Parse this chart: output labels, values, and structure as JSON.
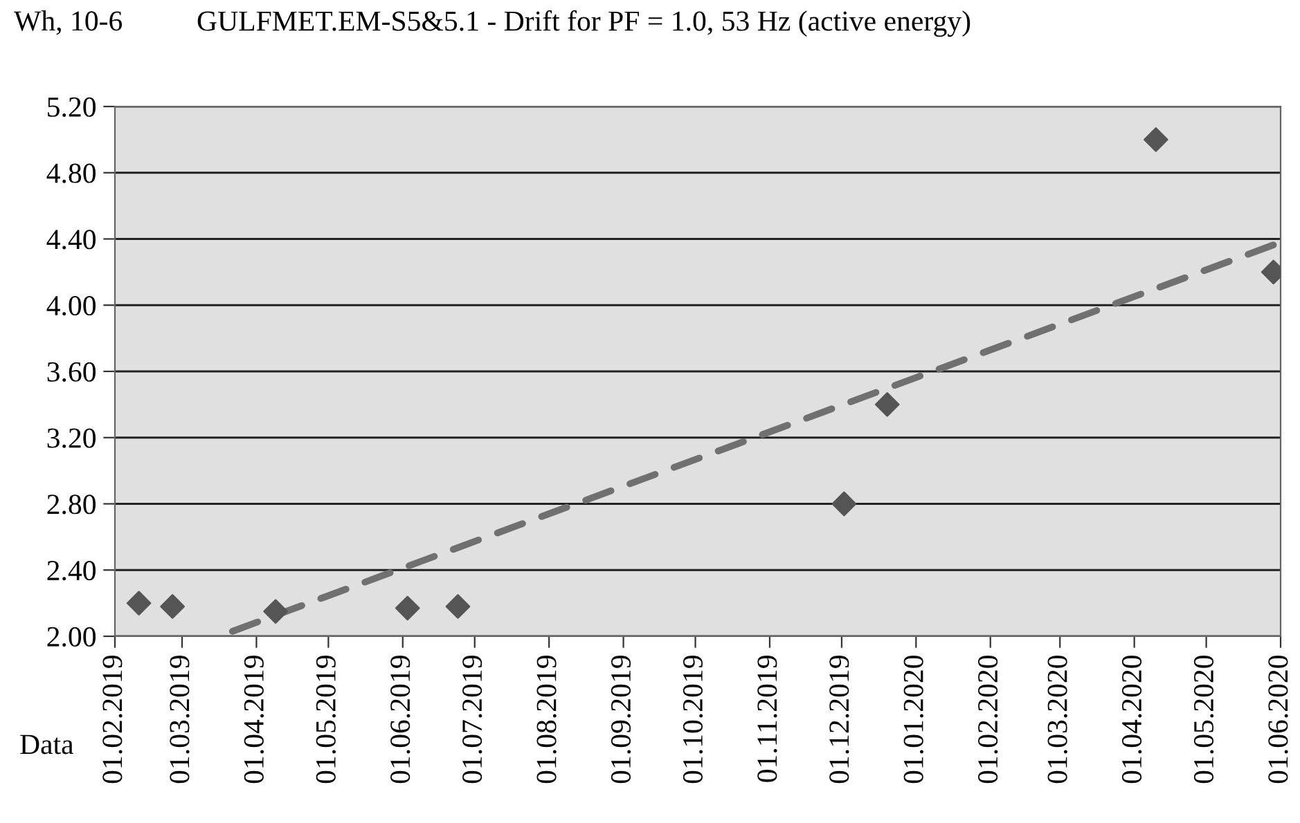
{
  "chart_data": {
    "type": "scatter",
    "title": "GULFMET.EM-S5&5.1 - Drift for PF = 1.0, 53 Hz (active energy)",
    "ylabel": "Wh, 10-6",
    "xlabel": "Data",
    "series": [
      {
        "marker": "diamond",
        "color": "#555555",
        "x": [
          "2019-02-11",
          "2019-02-25",
          "2019-04-09",
          "2019-06-03",
          "2019-06-24",
          "2019-12-02",
          "2019-12-20",
          "2020-04-10",
          "2020-05-29"
        ],
        "values": [
          2.2,
          2.18,
          2.15,
          2.17,
          2.18,
          2.8,
          3.4,
          5.0,
          4.2
        ]
      },
      {
        "type": "line",
        "line_style": "dashed",
        "color": "#707070",
        "x": [
          "2019-03-22",
          "2020-06-01"
        ],
        "values": [
          2.03,
          4.38
        ]
      }
    ],
    "xlim": [
      "2019-02-01",
      "2020-06-01"
    ],
    "xticks": [
      {
        "value": "2019-02-01",
        "label": "01.02.2019"
      },
      {
        "value": "2019-03-01",
        "label": "01.03.2019"
      },
      {
        "value": "2019-04-01",
        "label": "01.04.2019"
      },
      {
        "value": "2019-05-01",
        "label": "01.05.2019"
      },
      {
        "value": "2019-06-01",
        "label": "01.06.2019"
      },
      {
        "value": "2019-07-01",
        "label": "01.07.2019"
      },
      {
        "value": "2019-08-01",
        "label": "01.08.2019"
      },
      {
        "value": "2019-09-01",
        "label": "01.09.2019"
      },
      {
        "value": "2019-10-01",
        "label": "01.10.2019"
      },
      {
        "value": "2019-11-01",
        "label": "01.11.2019"
      },
      {
        "value": "2019-12-01",
        "label": "01.12.2019"
      },
      {
        "value": "2020-01-01",
        "label": "01.01.2020"
      },
      {
        "value": "2020-02-01",
        "label": "01.02.2020"
      },
      {
        "value": "2020-03-01",
        "label": "01.03.2020"
      },
      {
        "value": "2020-04-01",
        "label": "01.04.2020"
      },
      {
        "value": "2020-05-01",
        "label": "01.05.2020"
      },
      {
        "value": "2020-06-01",
        "label": "01.06.2020"
      }
    ],
    "ylim": [
      2.0,
      5.2
    ],
    "yticks": [
      {
        "value": 2.0,
        "label": "2.00"
      },
      {
        "value": 2.4,
        "label": "2.40"
      },
      {
        "value": 2.8,
        "label": "2.80"
      },
      {
        "value": 3.2,
        "label": "3.20"
      },
      {
        "value": 3.6,
        "label": "3.60"
      },
      {
        "value": 4.0,
        "label": "4.00"
      },
      {
        "value": 4.4,
        "label": "4.40"
      },
      {
        "value": 4.8,
        "label": "4.80"
      },
      {
        "value": 5.2,
        "label": "5.20"
      }
    ],
    "grid": "y"
  }
}
